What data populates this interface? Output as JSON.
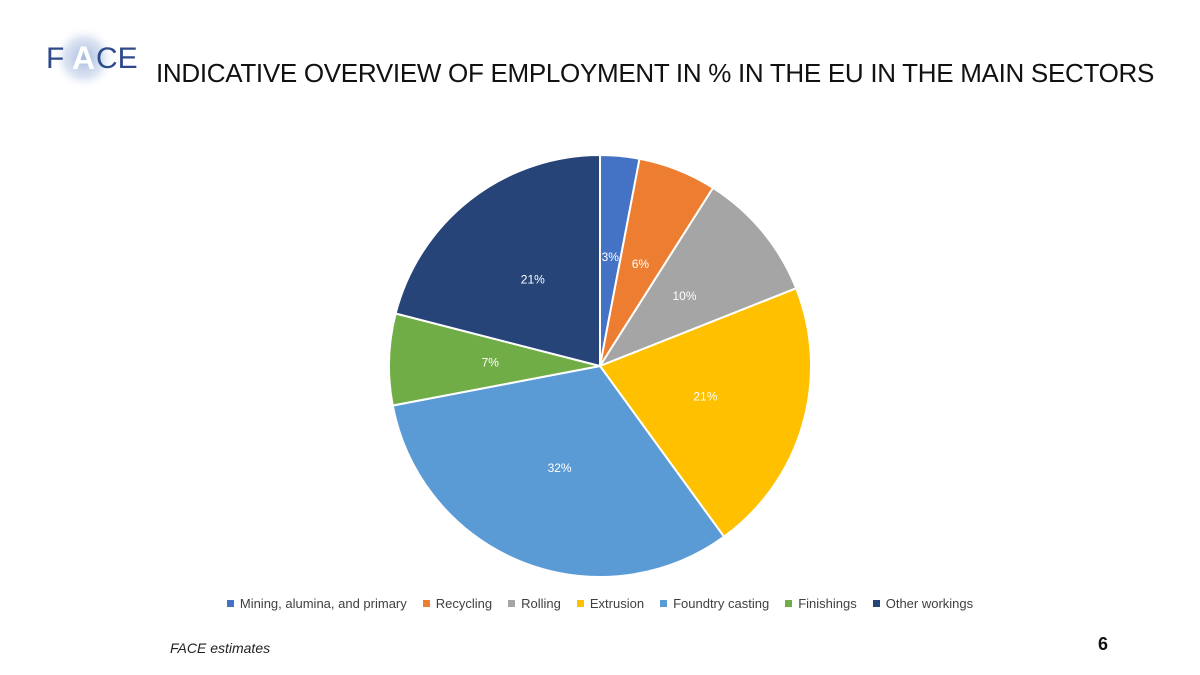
{
  "logo": {
    "text_left": "F",
    "text_mid": "A",
    "text_right": "CE"
  },
  "page": {
    "title": "INDICATIVE OVERVIEW OF EMPLOYMENT IN % IN THE EU IN THE MAIN SECTORS",
    "source": "FACE estimates",
    "page_number": "6"
  },
  "chart_data": {
    "type": "pie",
    "title": "INDICATIVE OVERVIEW OF EMPLOYMENT IN % IN THE EU IN THE MAIN SECTORS",
    "categories": [
      "Mining, alumina, and primary",
      "Recycling",
      "Rolling",
      "Extrusion",
      "Foundtry casting",
      "Finishings",
      "Other workings"
    ],
    "values": [
      3,
      6,
      10,
      21,
      32,
      7,
      21
    ],
    "labels": [
      "3%",
      "6%",
      "10%",
      "21%",
      "32%",
      "7%",
      "21%"
    ],
    "colors": [
      "#4472C4",
      "#ED7D31",
      "#A5A5A5",
      "#FFC000",
      "#5B9BD5",
      "#70AD47",
      "#264478"
    ],
    "label_colors": [
      "#ffffff",
      "#ffffff",
      "#ffffff",
      "#ffffff",
      "#ffffff",
      "#ffffff",
      "#ffffff"
    ],
    "legend_position": "bottom"
  }
}
